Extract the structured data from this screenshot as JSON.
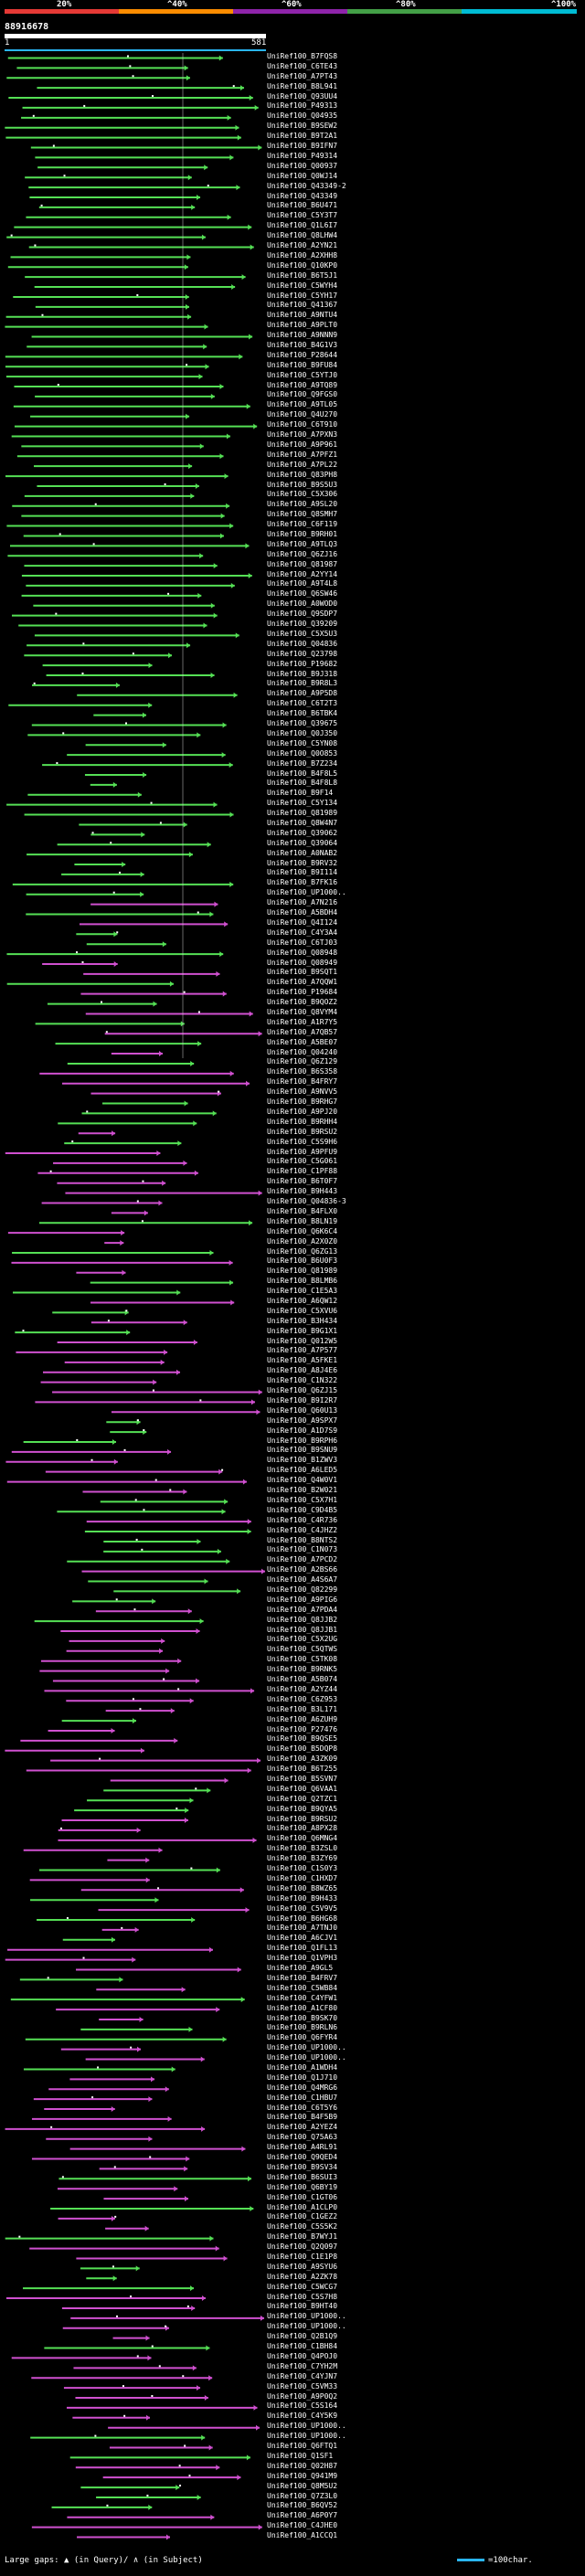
{
  "scale": {
    "labels": [
      "20%",
      "^40%",
      "^60%",
      "^80%",
      "^100%"
    ],
    "colors": [
      "#e53935",
      "#fb8c00",
      "#8e24aa",
      "#43a047",
      "#00bcd4"
    ]
  },
  "query": {
    "id": "88916678",
    "start": "1",
    "end": "581"
  },
  "colors": {
    "green": "#55e055",
    "magenta": "#d050d0",
    "gap": "#ffffff",
    "query": "#29b6f6"
  },
  "hits": [
    "UniRef100_B7FQS8",
    "UniRef100_C6TE43",
    "UniRef100_A7PT43",
    "UniRef100_B8L941",
    "UniRef100_Q93UU4",
    "UniRef100_P49313",
    "UniRef100_Q04935",
    "UniRef100_B9SEW2",
    "UniRef100_B9T2A1",
    "UniRef100_B9IFN7",
    "UniRef100_P49314",
    "UniRef100_Q00937",
    "UniRef100_Q0WJ14",
    "UniRef100_Q43349-2",
    "UniRef100_Q43349",
    "UniRef100_B6U471",
    "UniRef100_C5Y3T7",
    "UniRef100_Q1L6I7",
    "UniRef100_Q8LHW4",
    "UniRef100_A2YN21",
    "UniRef100_A2XHH8",
    "UniRef100_Q10KP0",
    "UniRef100_B6T5J1",
    "UniRef100_C5WYH4",
    "UniRef100_C5YH17",
    "UniRef100_Q41367",
    "UniRef100_A9NTU4",
    "UniRef100_A9PLT0",
    "UniRef100_A9NNN9",
    "UniRef100_B4G1V3",
    "UniRef100_P28644",
    "UniRef100_B9FU84",
    "UniRef100_C5YTJ0",
    "UniRef100_A9TQ89",
    "UniRef100_Q9FGS0",
    "UniRef100_A9TL05",
    "UniRef100_Q4U270",
    "UniRef100_C6T910",
    "UniRef100_A7PXN3",
    "UniRef100_A9P961",
    "UniRef100_A7PFZ1",
    "UniRef100_A7PL22",
    "UniRef100_Q83PH8",
    "UniRef100_B9S5U3",
    "UniRef100_C5X306",
    "UniRef100_A9SL20",
    "UniRef100_Q8SMH7",
    "UniRef100_C6F119",
    "UniRef100_B9RH01",
    "UniRef100_A9TLQ3",
    "UniRef100_Q6ZJ16",
    "UniRef100_Q81987",
    "UniRef100_A2YY14",
    "UniRef100_A9T4L8",
    "UniRef100_Q6SW46",
    "UniRef100_A0WOD0",
    "UniRef100_Q9SDP7",
    "UniRef100_Q39209",
    "UniRef100_C5X5U3",
    "UniRef100_Q04836",
    "UniRef100_Q23798",
    "UniRef100_P19682",
    "UniRef100_B9J318",
    "UniRef100_B9R8L3",
    "UniRef100_A9P5D8",
    "UniRef100_C6T2T3",
    "UniRef100_B6TBK4",
    "UniRef100_Q39675",
    "UniRef100_Q0J350",
    "UniRef100_C5YN08",
    "UniRef100_Q0O853",
    "UniRef100_B7Z234",
    "UniRef100_B4F8L5",
    "UniRef100_B4F8L8",
    "UniRef100_B9F14",
    "UniRef100_C5Y134",
    "UniRef100_Q81989",
    "UniRef100_Q8W4N7",
    "UniRef100_Q39062",
    "UniRef100_Q39064",
    "UniRef100_A0NAB2",
    "UniRef100_B9RV32",
    "UniRef100_B9I114",
    "UniRef100_B7FK16",
    "UniRef100_UP1000..",
    "UniRef100_A7N216",
    "UniRef100_A5BDH4",
    "UniRef100_Q4I124",
    "UniRef100_C4Y3A4",
    "UniRef100_C6TJ03",
    "UniRef100_Q08948",
    "UniRef100_Q08949",
    "UniRef100_B9SQT1",
    "UniRef100_A7QQW1",
    "UniRef100_P19684",
    "UniRef100_B9QOZ2",
    "UniRef100_Q8VYM4",
    "UniRef100_A1R7Y5",
    "UniRef100_A7QB57",
    "UniRef100_A5BE07",
    "UniRef100_Q04240",
    "UniRef100_Q6Z129",
    "UniRef100_B6S358",
    "UniRef100_B4FRY7",
    "UniRef100_A9NVV5",
    "UniRef100_B9RHG7",
    "UniRef100_A9PJ20",
    "UniRef100_B9RHH4",
    "UniRef100_B9RSU2",
    "UniRef100_C5S9H6",
    "UniRef100_A9PFU9",
    "UniRef100_C5G061",
    "UniRef100_C1PF88",
    "UniRef100_B6T0F7",
    "UniRef100_B9H443",
    "UniRef100_Q04836-3",
    "UniRef100_B4FLX0",
    "UniRef100_B8LN19",
    "UniRef100_Q6K6C4",
    "UniRef100_A2X0Z0",
    "UniRef100_Q6ZG13",
    "UniRef100_B6U0F3",
    "UniRef100_Q81989",
    "UniRef100_B8LMB6",
    "UniRef100_C1E5A3",
    "UniRef100_A6QW12",
    "UniRef100_C5XVU6",
    "UniRef100_B3H434",
    "UniRef100_B9G1X1",
    "UniRef100_Q012W5",
    "UniRef100_A7P577",
    "UniRef100_A5FKE1",
    "UniRef100_A8J4E6",
    "UniRef100_C1N322",
    "UniRef100_Q6ZJ15",
    "UniRef100_B9I2R7",
    "UniRef100_Q60U13",
    "UniRef100_A9SPX7",
    "UniRef100_A1D7S9",
    "UniRef100_B9RPH6",
    "UniRef100_B9SNU9",
    "UniRef100_B1ZWV3",
    "UniRef100_A6LED5",
    "UniRef100_Q4W0V1",
    "UniRef100_B2W021",
    "UniRef100_C5X7H1",
    "UniRef100_C9D4B5",
    "UniRef100_C4R736",
    "UniRef100_C4JHZ2",
    "UniRef100_B8NTS2",
    "UniRef100_C1N073",
    "UniRef100_A7PCD2",
    "UniRef100_A2BS66",
    "UniRef100_A4S6A7",
    "UniRef100_Q82299",
    "UniRef100_A9PIG6",
    "UniRef100_A7PDA4",
    "UniRef100_Q8JJB2",
    "UniRef100_Q8JJB1",
    "UniRef100_C5X2UG",
    "UniRef100_C5QTWS",
    "UniRef100_C5TK08",
    "UniRef100_B9RNK5",
    "UniRef100_A5B074",
    "UniRef100_A2YZ44",
    "UniRef100_C6Z953",
    "UniRef100_B3L171",
    "UniRef100_A6ZUH9",
    "UniRef100_P27476",
    "UniRef100_B9QSE5",
    "UniRef100_B5DQP8",
    "UniRef100_A3ZK09",
    "UniRef100_B6T255",
    "UniRef100_B5SVN7",
    "UniRef100_Q6VAA1",
    "UniRef100_Q2TZC1",
    "UniRef100_B9QYA5",
    "UniRef100_B9RSU2",
    "UniRef100_A8PX28",
    "UniRef100_Q6MNG4",
    "UniRef100_B3ZSL0",
    "UniRef100_B3ZY69",
    "UniRef100_C1S0Y3",
    "UniRef100_C1HXD7",
    "UniRef100_B8WZ65",
    "UniRef100_B9H433",
    "UniRef100_C5V9V5",
    "UniRef100_B6HG68",
    "UniRef100_A7TNJ0",
    "UniRef100_A6CJV1",
    "UniRef100_Q1FL13",
    "UniRef100_Q1VPH3",
    "UniRef100_A9GL5",
    "UniRef100_B4FRV7",
    "UniRef100_C5WB84",
    "UniRef100_C4YFW1",
    "UniRef100_A1CF80",
    "UniRef100_B9SK70",
    "UniRef100_B9RLN6",
    "UniRef100_Q6FYR4",
    "UniRef100_UP1000..",
    "UniRef100_UP1000..",
    "UniRef100_A1WDH4",
    "UniRef100_Q1J710",
    "UniRef100_Q4MRG6",
    "UniRef100_C1HBU7",
    "UniRef100_C6T5Y6",
    "UniRef100_B4F5B9",
    "UniRef100_A2YEZ4",
    "UniRef100_Q75A63",
    "UniRef100_A4RL91",
    "UniRef100_Q9QED4",
    "UniRef100_B9SV34",
    "UniRef100_B6SUI3",
    "UniRef100_Q6BY19",
    "UniRef100_C1GT06",
    "UniRef100_A1CLP0",
    "UniRef100_C1GEZ2",
    "UniRef100_C5S5K2",
    "UniRef100_B7WYJ1",
    "UniRef100_Q2Q097",
    "UniRef100_C1E1P8",
    "UniRef100_A9SYU6",
    "UniRef100_A2ZK78",
    "UniRef100_C5WCG7",
    "UniRef100_C5S7H8",
    "UniRef100_B9HT40",
    "UniRef100_UP1000..",
    "UniRef100_UP1000..",
    "UniRef100_Q2B1Q9",
    "UniRef100_C1BH84",
    "UniRef100_Q4POJ0",
    "UniRef100_C7YH2M",
    "UniRef100_C4YJN7",
    "UniRef100_C5VM33",
    "UniRef100_A9P0Q2",
    "UniRef100_C5S164",
    "UniRef100_C4Y5K9",
    "UniRef100_UP1000..",
    "UniRef100_UP1000..",
    "UniRef100_Q6FTQ1",
    "UniRef100_Q1SF1",
    "UniRef100_Q02H87",
    "UniRef100_Q941M9",
    "UniRef100_Q8M5U2",
    "UniRef100_Q7Z3L0",
    "UniRef100_B6QV52",
    "UniRef100_A6P0Y7",
    "UniRef100_C4JHE0",
    "UniRef100_A1CCQ1"
  ],
  "legend": {
    "large_gaps": "Large gaps:",
    "in_query": "(in Query)/",
    "in_subject": "(in Subject)",
    "scale_note": "=100char."
  }
}
